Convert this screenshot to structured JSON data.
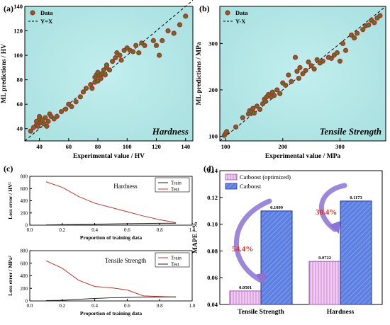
{
  "chart_data": [
    {
      "panel": "(a)",
      "type": "scatter",
      "annotation": "Hardness",
      "xlabel": "Experimental value / HV",
      "ylabel": "ML predictions / HV",
      "xlim": [
        30,
        145
      ],
      "ylim": [
        30,
        140
      ],
      "xticks": [
        40,
        60,
        80,
        100,
        120,
        140
      ],
      "yticks": [
        40,
        60,
        80,
        100,
        120,
        140
      ],
      "legend": [
        "Data",
        "Y=X"
      ],
      "legend_position": "top-left",
      "series": [
        {
          "name": "Data",
          "x": [
            34,
            36,
            38,
            38,
            39,
            40,
            40,
            41,
            42,
            43,
            44,
            45,
            46,
            47,
            48,
            50,
            52,
            55,
            58,
            60,
            62,
            65,
            68,
            70,
            72,
            75,
            76,
            78,
            78,
            79,
            80,
            80,
            81,
            82,
            83,
            84,
            85,
            86,
            86,
            88,
            90,
            92,
            93,
            95,
            96,
            98,
            100,
            102,
            104,
            106,
            108,
            110,
            112,
            118,
            120,
            122,
            124,
            128,
            132,
            136,
            140
          ],
          "y": [
            38,
            41,
            43,
            46,
            42,
            48,
            50,
            45,
            47,
            44,
            49,
            42,
            46,
            52,
            50,
            48,
            50,
            54,
            56,
            60,
            58,
            62,
            66,
            70,
            73,
            76,
            73,
            78,
            82,
            84,
            79,
            86,
            83,
            81,
            85,
            88,
            84,
            90,
            92,
            88,
            95,
            98,
            102,
            100,
            96,
            104,
            106,
            104,
            103,
            108,
            102,
            110,
            108,
            112,
            108,
            100,
            112,
            120,
            118,
            125,
            132
          ]
        }
      ],
      "reference_line": {
        "name": "Y=X",
        "x": [
          30,
          145
        ],
        "y": [
          30,
          145
        ]
      }
    },
    {
      "panel": "(b)",
      "type": "scatter",
      "annotation": "Tensile Strength",
      "xlabel": "Experimental value / MPa",
      "ylabel": "ML predictions / MPa",
      "xlim": [
        90,
        380
      ],
      "ylim": [
        90,
        380
      ],
      "xticks": [
        100,
        200,
        300
      ],
      "yticks": [
        100,
        200,
        300
      ],
      "legend": [
        "Data",
        "Y-X"
      ],
      "legend_position": "top-left",
      "series": [
        {
          "name": "Data",
          "x": [
            98,
            100,
            102,
            118,
            130,
            140,
            142,
            145,
            148,
            150,
            155,
            160,
            165,
            168,
            170,
            172,
            175,
            180,
            182,
            185,
            190,
            195,
            200,
            205,
            210,
            215,
            222,
            225,
            228,
            230,
            235,
            240,
            245,
            250,
            255,
            260,
            265,
            270,
            280,
            285,
            290,
            295,
            300,
            305,
            310,
            320,
            325,
            330,
            340,
            345,
            350,
            355,
            360,
            365,
            370
          ],
          "y": [
            102,
            106,
            110,
            120,
            140,
            148,
            155,
            152,
            160,
            150,
            165,
            158,
            170,
            180,
            175,
            185,
            190,
            185,
            195,
            188,
            200,
            192,
            215,
            210,
            232,
            218,
            270,
            240,
            225,
            248,
            235,
            242,
            260,
            252,
            245,
            265,
            258,
            262,
            270,
            268,
            275,
            280,
            262,
            300,
            285,
            318,
            312,
            322,
            330,
            338,
            340,
            350,
            345,
            355,
            360
          ]
        }
      ],
      "reference_line": {
        "name": "Y-X",
        "x": [
          90,
          380
        ],
        "y": [
          90,
          380
        ]
      }
    },
    {
      "panel": "(c)",
      "type": "line",
      "annotation": "Hardness",
      "xlabel": "Proportion of training data",
      "ylabel": "Loss error / HV²",
      "xlim": [
        0,
        1.0
      ],
      "ylim": [
        0,
        800
      ],
      "xticks": [
        0.0,
        0.2,
        0.4,
        0.6,
        0.8,
        1.0
      ],
      "yticks": [
        0,
        200,
        400,
        600,
        800
      ],
      "legend_position": "top-right",
      "x": [
        0.1,
        0.2,
        0.3,
        0.4,
        0.5,
        0.6,
        0.7,
        0.8,
        0.9
      ],
      "series": [
        {
          "name": "Train",
          "color": "#222222",
          "values": [
            5,
            8,
            12,
            16,
            20,
            24,
            28,
            30,
            32
          ]
        },
        {
          "name": "Test",
          "color": "#c0392b",
          "values": [
            710,
            620,
            470,
            360,
            290,
            220,
            150,
            90,
            40
          ]
        }
      ]
    },
    {
      "panel": "(c)",
      "type": "line",
      "annotation": "Tensile Strength",
      "xlabel": "Proportion of training data",
      "ylabel": "Loss error / MPa²",
      "xlim": [
        0,
        1.0
      ],
      "ylim": [
        0,
        800
      ],
      "xticks": [
        0.0,
        0.2,
        0.4,
        0.6,
        0.8,
        1.0
      ],
      "yticks": [
        0,
        200,
        400,
        600,
        800
      ],
      "legend_position": "top-right",
      "x": [
        0.1,
        0.2,
        0.3,
        0.4,
        0.5,
        0.6,
        0.7,
        0.8,
        0.9
      ],
      "series": [
        {
          "name": "Train",
          "color": "#c0392b",
          "values": [
            640,
            520,
            330,
            230,
            210,
            175,
            80,
            70,
            60
          ]
        },
        {
          "name": "Test",
          "color": "#222222",
          "values": [
            5,
            10,
            25,
            40,
            50,
            55,
            60,
            62,
            65
          ]
        }
      ]
    },
    {
      "panel": "(d)",
      "type": "bar",
      "xlabel": "",
      "ylabel": "MAPE / %",
      "ylim": [
        0.04,
        0.14
      ],
      "yticks": [
        0.04,
        0.06,
        0.08,
        0.1,
        0.12,
        0.14
      ],
      "categories": [
        "Tensile Strength",
        "Hardness"
      ],
      "legend_position": "top-left",
      "series": [
        {
          "name": "Catboost (optimized)",
          "color": "#e8b5e8",
          "values": [
            0.0501,
            0.0722
          ],
          "labels": [
            "0.0501",
            "0.0722"
          ]
        },
        {
          "name": "Catboost",
          "color": "#5b7fe0",
          "values": [
            0.1099,
            0.1173
          ],
          "labels": [
            "0.1099",
            "0.1173"
          ]
        }
      ],
      "annotations": [
        "54.4%",
        "38.4%"
      ]
    }
  ],
  "colors": {
    "scatter_bg": "#b8e8e8",
    "marker_edge": "#cc2222",
    "marker_fill": "#2e8b2e",
    "bar_pink": "#e8b5e8",
    "bar_blue": "#5b7fe0",
    "arrow": "#8c72d4",
    "pct_red": "#d0342c"
  }
}
